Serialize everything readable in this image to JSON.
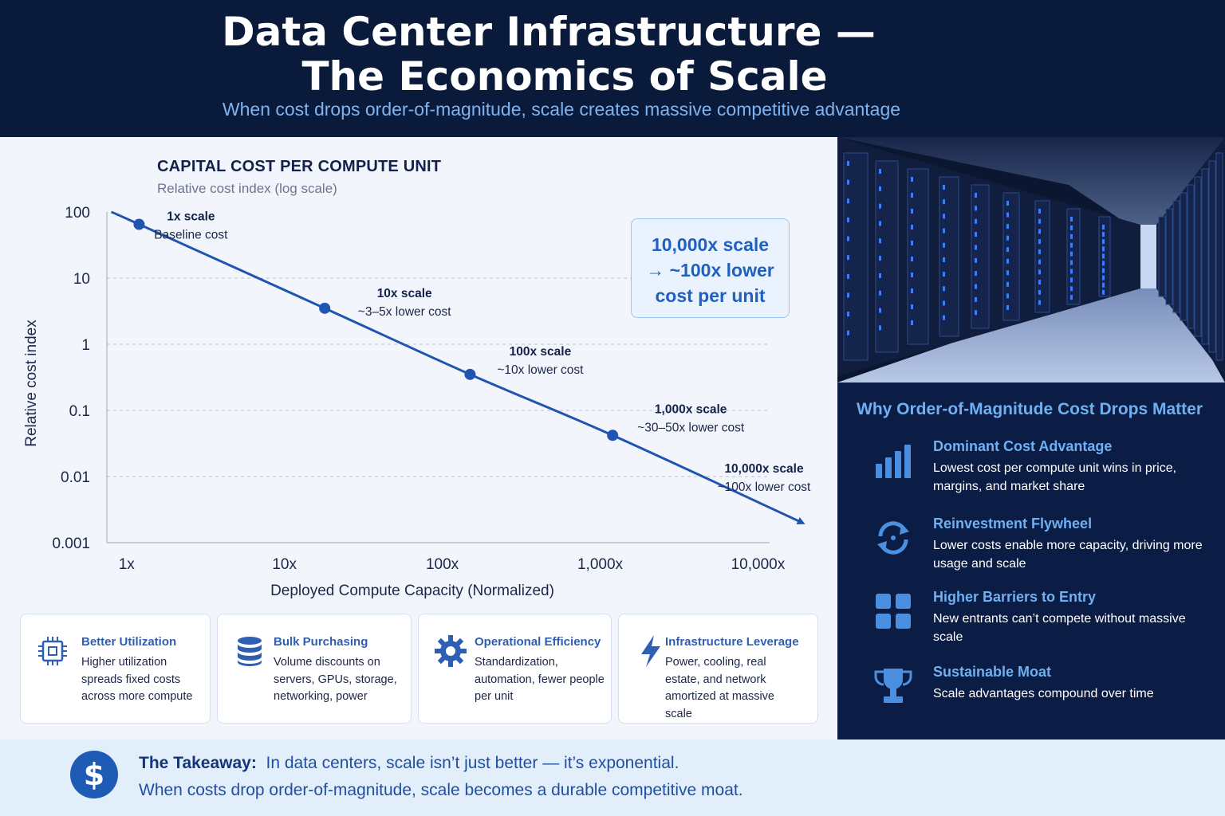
{
  "header": {
    "title_line1": "Data Center Infrastructure —",
    "title_line2": "The Economics of Scale",
    "subtitle": "When cost drops order-of-magnitude, scale creates massive competitive advantage"
  },
  "chart_data": {
    "type": "line",
    "title": "CAPITAL COST PER COMPUTE UNIT",
    "subtitle": "Relative cost index (log scale)",
    "xlabel": "Deployed Compute Capacity (Normalized)",
    "ylabel": "Relative cost index",
    "x_scale": "log",
    "y_scale": "log",
    "xlim": [
      0.75,
      20000
    ],
    "ylim": [
      0.001,
      100
    ],
    "x_ticks": [
      1,
      10,
      100,
      1000,
      10000
    ],
    "x_tick_labels": [
      "1x",
      "10x",
      "100x",
      "1,000x",
      "10,000x"
    ],
    "y_ticks": [
      100,
      10,
      1,
      0.1,
      0.01,
      0.001
    ],
    "y_tick_labels": [
      "100",
      "10",
      "1",
      "0.1",
      "0.01",
      "0.001"
    ],
    "grid": "horizontal dashed",
    "line_color": "#1f55b0",
    "series": [
      {
        "x": [
          0.8,
          1.2,
          18,
          150,
          1200,
          22000
        ],
        "y": [
          100,
          65,
          3.5,
          0.35,
          0.042,
          0.002
        ]
      }
    ],
    "markers": [
      {
        "x": 1.2,
        "y": 65,
        "label": "1x scale",
        "note": "Baseline cost"
      },
      {
        "x": 18,
        "y": 3.5,
        "label": "10x scale",
        "note": "~3–5x lower cost"
      },
      {
        "x": 150,
        "y": 0.35,
        "label": "100x scale",
        "note": "~10x lower cost"
      },
      {
        "x": 1200,
        "y": 0.042,
        "label": "1,000x scale",
        "note": "~30–50x lower cost"
      }
    ],
    "end_annotation": {
      "label": "10,000x scale",
      "note": "~100x lower cost"
    },
    "callout": [
      "10,000x scale",
      "→ ~100x lower",
      "cost per unit"
    ]
  },
  "why": {
    "title": "Why Order-of-Magnitude Cost Drops Matter",
    "items": [
      {
        "icon": "bar-chart-icon",
        "heading": "Dominant Cost Advantage",
        "desc": "Lowest cost per compute unit wins in price, margins, and market share"
      },
      {
        "icon": "refresh-cycle-icon",
        "heading": "Reinvestment Flywheel",
        "desc": "Lower costs enable more capacity, driving more usage and scale"
      },
      {
        "icon": "grid-blocks-icon",
        "heading": "Higher Barriers to Entry",
        "desc": "New entrants can’t compete without massive scale"
      },
      {
        "icon": "trophy-icon",
        "heading": "Sustainable Moat",
        "desc": "Scale advantages compound over time"
      }
    ]
  },
  "cards": [
    {
      "icon": "chip-icon",
      "heading": "Better Utilization",
      "desc": "Higher utilization spreads fixed costs across more compute"
    },
    {
      "icon": "database-icon",
      "heading": "Bulk Purchasing",
      "desc": "Volume discounts on servers, GPUs, storage, networking, power"
    },
    {
      "icon": "gear-icon",
      "heading": "Operational Efficiency",
      "desc": "Standardization, automation, fewer people per unit"
    },
    {
      "icon": "lightning-icon",
      "heading": "Infrastructure Leverage",
      "desc": "Power, cooling, real estate, and network amortized at massive scale"
    }
  ],
  "takeaway": {
    "icon": "dollar-icon",
    "symbol": "$",
    "label": "The Takeaway:",
    "line1": "In data centers, scale isn’t just better — it’s exponential.",
    "line2": "When costs drop order-of-magnitude, scale becomes a durable competitive moat."
  },
  "colors": {
    "header_bg": "#0a1a3a",
    "accent": "#1f55b0",
    "panel_bg": "#0b1d44",
    "panel_heading": "#6fb0f3"
  }
}
